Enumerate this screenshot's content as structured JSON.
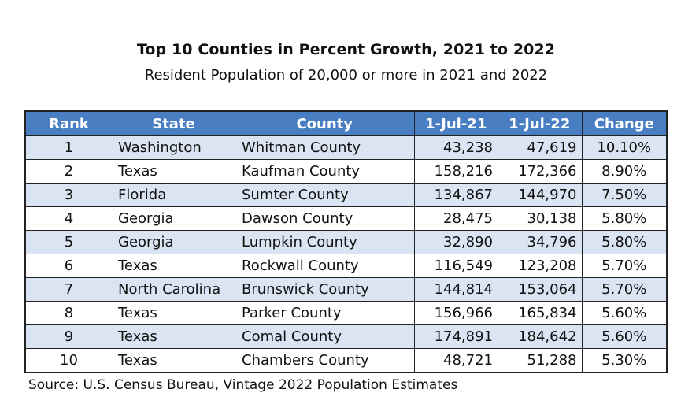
{
  "title": "Top 10 Counties in Percent Growth, 2021 to 2022",
  "subtitle": "Resident Population of 20,000 or more in 2021 and 2022",
  "table": {
    "headers": [
      "Rank",
      "State",
      "County",
      "1-Jul-21",
      "1-Jul-22",
      "Change"
    ],
    "rows": [
      {
        "rank": "1",
        "state": "Washington",
        "county": "Whitman County",
        "pop2021": "43,238",
        "pop2022": "47,619",
        "change": "10.10%"
      },
      {
        "rank": "2",
        "state": "Texas",
        "county": "Kaufman County",
        "pop2021": "158,216",
        "pop2022": "172,366",
        "change": "8.90%"
      },
      {
        "rank": "3",
        "state": "Florida",
        "county": "Sumter County",
        "pop2021": "134,867",
        "pop2022": "144,970",
        "change": "7.50%"
      },
      {
        "rank": "4",
        "state": "Georgia",
        "county": "Dawson County",
        "pop2021": "28,475",
        "pop2022": "30,138",
        "change": "5.80%"
      },
      {
        "rank": "5",
        "state": "Georgia",
        "county": "Lumpkin County",
        "pop2021": "32,890",
        "pop2022": "34,796",
        "change": "5.80%"
      },
      {
        "rank": "6",
        "state": "Texas",
        "county": "Rockwall County",
        "pop2021": "116,549",
        "pop2022": "123,208",
        "change": "5.70%"
      },
      {
        "rank": "7",
        "state": "North Carolina",
        "county": "Brunswick County",
        "pop2021": "144,814",
        "pop2022": "153,064",
        "change": "5.70%"
      },
      {
        "rank": "8",
        "state": "Texas",
        "county": "Parker County",
        "pop2021": "156,966",
        "pop2022": "165,834",
        "change": "5.60%"
      },
      {
        "rank": "9",
        "state": "Texas",
        "county": "Comal County",
        "pop2021": "174,891",
        "pop2022": "184,642",
        "change": "5.60%"
      },
      {
        "rank": "10",
        "state": "Texas",
        "county": "Chambers County",
        "pop2021": "48,721",
        "pop2022": "51,288",
        "change": "5.30%"
      }
    ]
  },
  "source": "Source: U.S. Census Bureau, Vintage 2022 Population Estimates",
  "colors": {
    "header_bg": "#4a7ec2",
    "header_text": "#ffffff",
    "row_shade": "#dbe4f3",
    "border": "#222222"
  }
}
